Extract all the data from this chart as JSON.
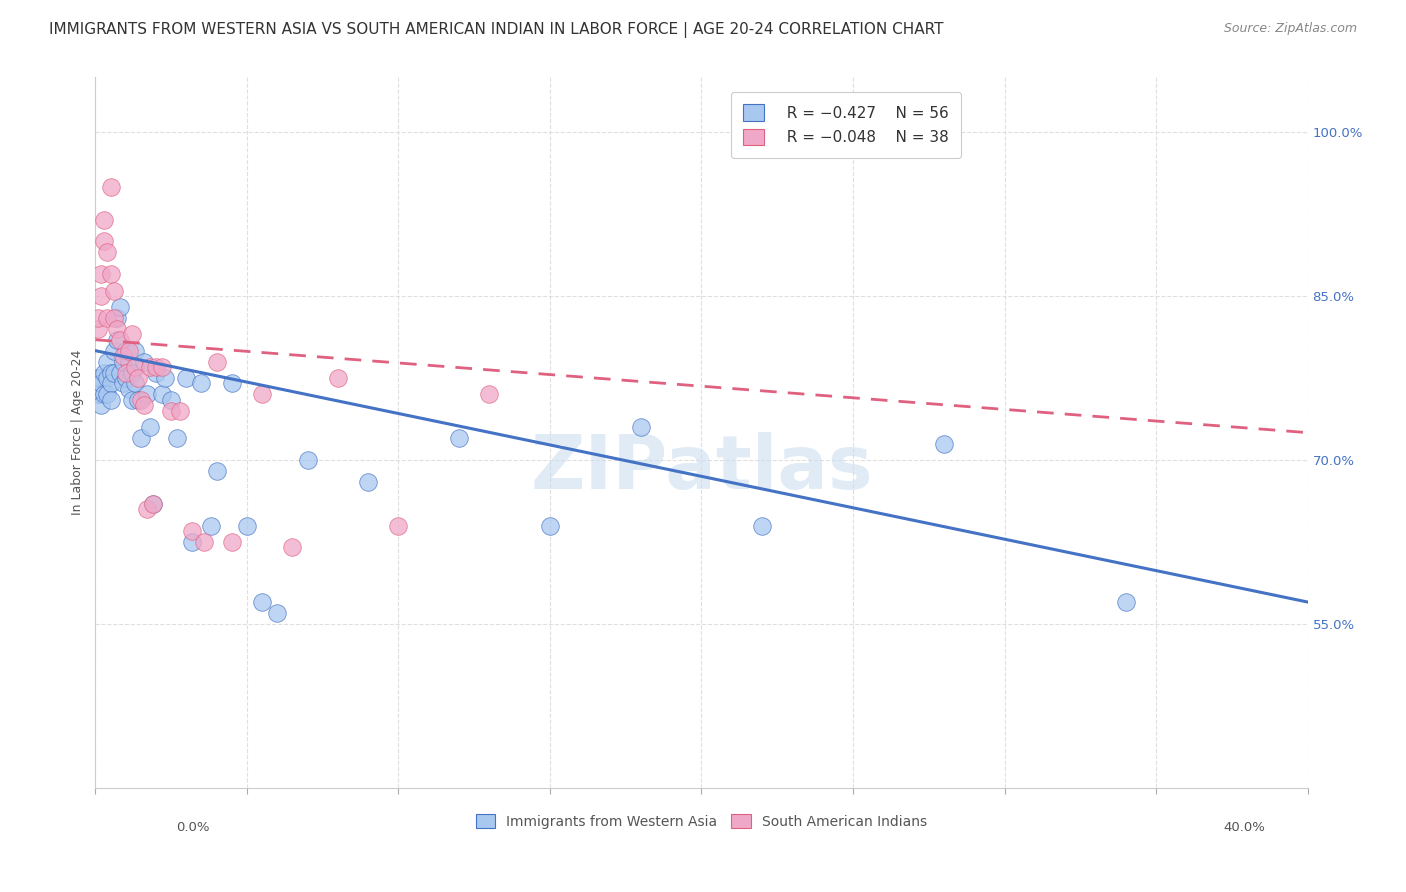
{
  "title": "IMMIGRANTS FROM WESTERN ASIA VS SOUTH AMERICAN INDIAN IN LABOR FORCE | AGE 20-24 CORRELATION CHART",
  "source": "Source: ZipAtlas.com",
  "ylabel": "In Labor Force | Age 20-24",
  "legend_blue_r": "R = −0.427",
  "legend_blue_n": "N = 56",
  "legend_pink_r": "R = −0.048",
  "legend_pink_n": "N = 38",
  "legend_label_blue": "Immigrants from Western Asia",
  "legend_label_pink": "South American Indians",
  "blue_color": "#A8C8F0",
  "pink_color": "#F0A8C8",
  "blue_line_color": "#4472C4",
  "pink_line_color": "#E06080",
  "background_color": "#FFFFFF",
  "grid_color": "#D8D8D8",
  "watermark": "ZIPatlas",
  "blue_scatter_x": [
    0.001,
    0.001,
    0.002,
    0.002,
    0.003,
    0.003,
    0.004,
    0.004,
    0.004,
    0.005,
    0.005,
    0.005,
    0.006,
    0.006,
    0.007,
    0.007,
    0.008,
    0.008,
    0.009,
    0.009,
    0.01,
    0.01,
    0.011,
    0.011,
    0.012,
    0.012,
    0.013,
    0.013,
    0.014,
    0.015,
    0.016,
    0.017,
    0.018,
    0.019,
    0.02,
    0.022,
    0.023,
    0.025,
    0.027,
    0.03,
    0.032,
    0.035,
    0.038,
    0.04,
    0.045,
    0.05,
    0.055,
    0.06,
    0.07,
    0.09,
    0.12,
    0.15,
    0.18,
    0.22,
    0.28,
    0.34
  ],
  "blue_scatter_y": [
    0.775,
    0.76,
    0.77,
    0.75,
    0.78,
    0.76,
    0.79,
    0.775,
    0.76,
    0.78,
    0.77,
    0.755,
    0.8,
    0.78,
    0.83,
    0.81,
    0.84,
    0.78,
    0.79,
    0.77,
    0.8,
    0.775,
    0.79,
    0.765,
    0.78,
    0.755,
    0.8,
    0.77,
    0.755,
    0.72,
    0.79,
    0.76,
    0.73,
    0.66,
    0.78,
    0.76,
    0.775,
    0.755,
    0.72,
    0.775,
    0.625,
    0.77,
    0.64,
    0.69,
    0.77,
    0.64,
    0.57,
    0.56,
    0.7,
    0.68,
    0.72,
    0.64,
    0.73,
    0.64,
    0.715,
    0.57
  ],
  "pink_scatter_x": [
    0.001,
    0.001,
    0.002,
    0.002,
    0.003,
    0.003,
    0.004,
    0.004,
    0.005,
    0.005,
    0.006,
    0.006,
    0.007,
    0.008,
    0.009,
    0.01,
    0.011,
    0.012,
    0.013,
    0.014,
    0.015,
    0.016,
    0.017,
    0.018,
    0.019,
    0.02,
    0.022,
    0.025,
    0.028,
    0.032,
    0.036,
    0.04,
    0.045,
    0.055,
    0.065,
    0.08,
    0.1,
    0.13
  ],
  "pink_scatter_y": [
    0.82,
    0.83,
    0.87,
    0.85,
    0.9,
    0.92,
    0.89,
    0.83,
    0.95,
    0.87,
    0.83,
    0.855,
    0.82,
    0.81,
    0.795,
    0.78,
    0.8,
    0.815,
    0.785,
    0.775,
    0.755,
    0.75,
    0.655,
    0.785,
    0.66,
    0.785,
    0.785,
    0.745,
    0.745,
    0.635,
    0.625,
    0.79,
    0.625,
    0.76,
    0.62,
    0.775,
    0.64,
    0.76
  ],
  "xlim": [
    0.0,
    0.4
  ],
  "ylim": [
    0.4,
    1.05
  ],
  "blue_line_y0": 0.8,
  "blue_line_y1": 0.57,
  "pink_line_y0": 0.81,
  "pink_line_y1": 0.725,
  "title_fontsize": 11,
  "source_fontsize": 9,
  "axis_fontsize": 9,
  "tick_fontsize": 9.5
}
